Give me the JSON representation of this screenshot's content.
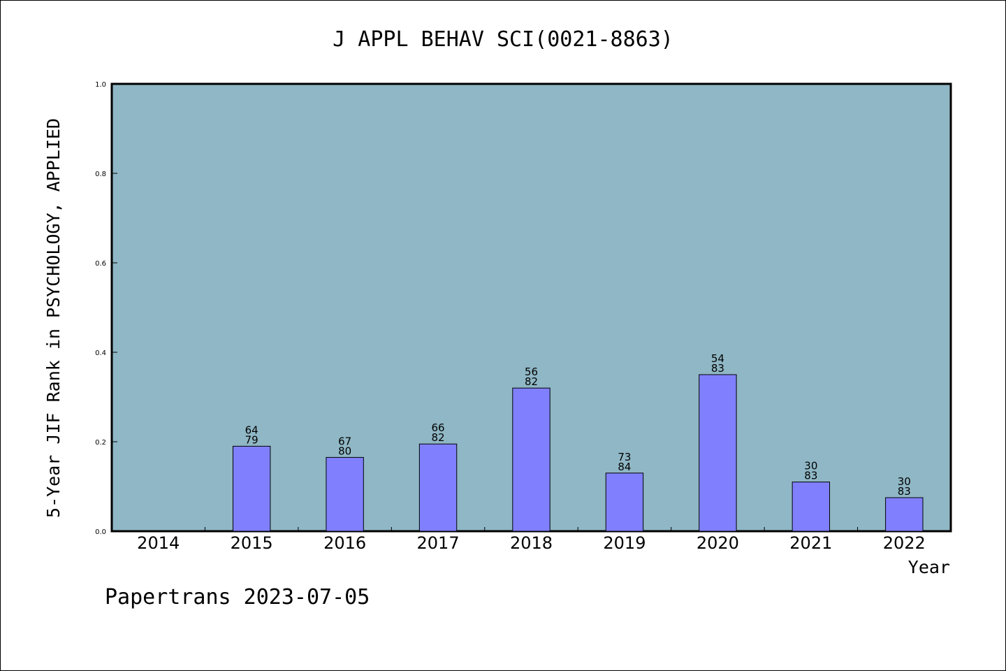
{
  "chart_data": {
    "type": "bar",
    "title": "J APPL BEHAV SCI(0021-8863)",
    "xlabel": "Year",
    "ylabel": "5-Year JIF Rank in PSYCHOLOGY, APPLIED",
    "ylim": [
      0,
      1.0
    ],
    "yticks": [
      "0.0",
      "0.2",
      "0.4",
      "0.6",
      "0.8",
      "1.0"
    ],
    "categories": [
      "2014",
      "2015",
      "2016",
      "2017",
      "2018",
      "2019",
      "2020",
      "2021",
      "2022"
    ],
    "values": [
      null,
      0.19,
      0.165,
      0.195,
      0.32,
      0.13,
      0.35,
      0.11,
      0.075
    ],
    "rank": [
      "",
      "64",
      "67",
      "66",
      "56",
      "73",
      "54",
      "30",
      "30"
    ],
    "total": [
      "",
      "79",
      "80",
      "82",
      "82",
      "84",
      "83",
      "83",
      "83"
    ],
    "grid": false,
    "legend": "none",
    "colors": {
      "plot_background": "#8fb7c5",
      "bar_fill": "#8080ff",
      "bar_stroke": "#000000"
    }
  },
  "footer": "Papertrans 2023-07-05"
}
